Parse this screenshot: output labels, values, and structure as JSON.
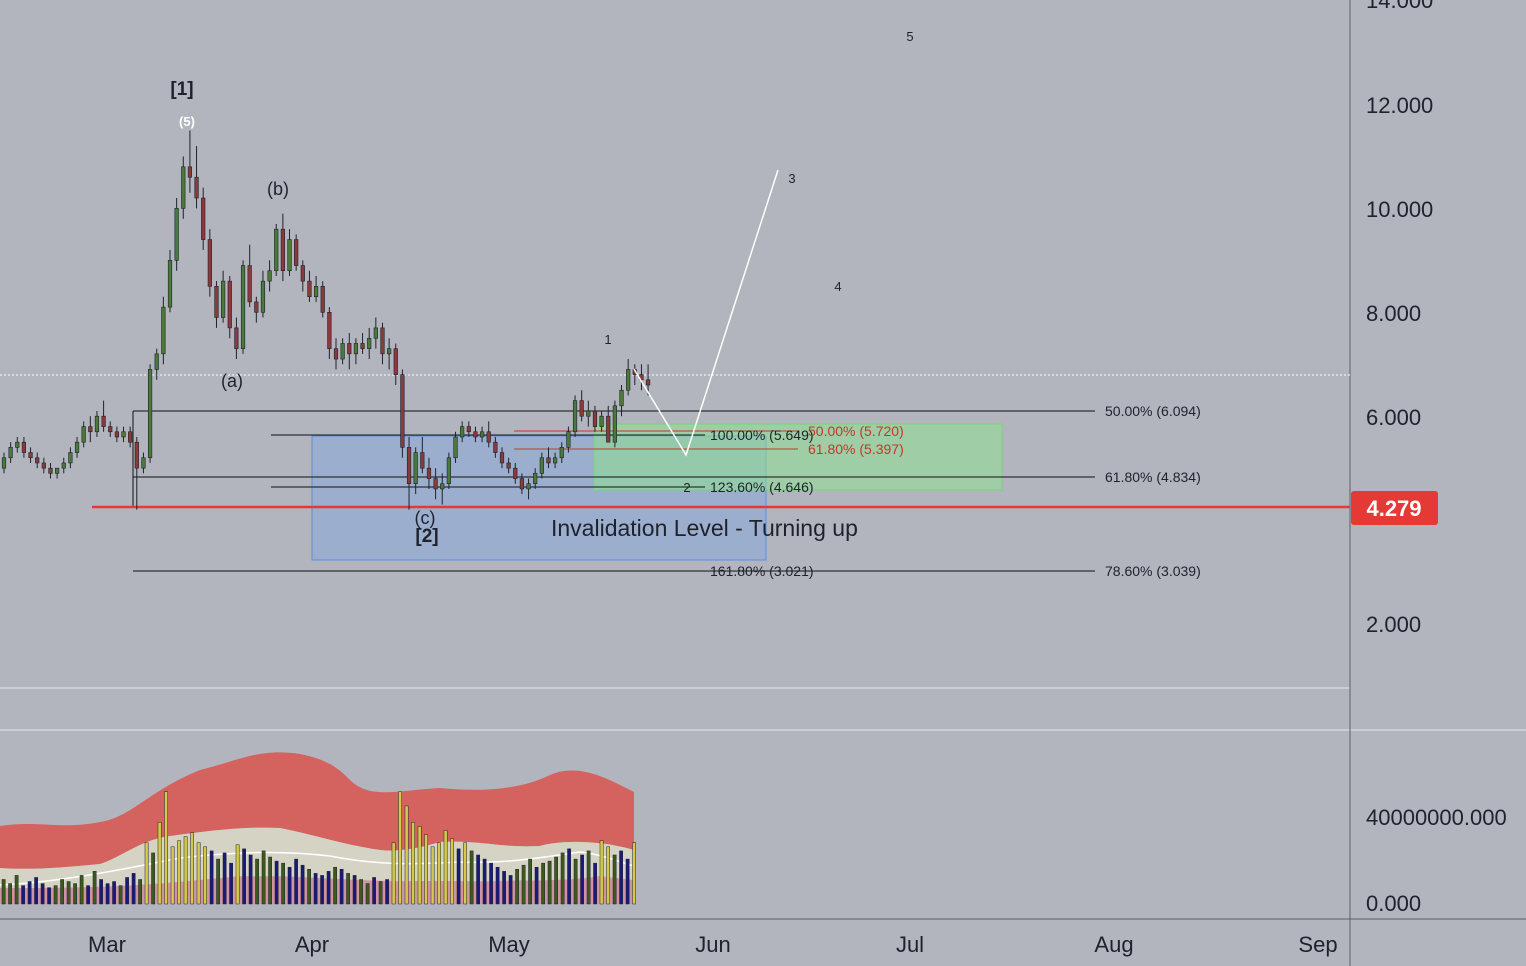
{
  "theme": {
    "background": "#b2b5be",
    "up_candle": "#4a7a3a",
    "down_candle": "#8b3a3a",
    "invalidation": "#e53935",
    "fib_red": "#c0392b",
    "box_blue": "#7ea6e0",
    "box_green": "#8fe08f",
    "volume_band": "#d9534f",
    "volume_mid": "#d8d6c4"
  },
  "price_axis": {
    "ticks": [
      "14.000",
      "12.000",
      "10.000",
      "8.000",
      "6.000",
      "2.000"
    ],
    "current_price": "4.279"
  },
  "volume_axis": {
    "ticks": [
      "40000000.000",
      "0.000"
    ]
  },
  "time_axis": {
    "labels": [
      "Mar",
      "Apr",
      "May",
      "Jun",
      "Jul",
      "Aug",
      "Sep"
    ]
  },
  "wave_labels": {
    "big1": "[1]",
    "w5": "(5)",
    "wa": "(a)",
    "wb": "(b)",
    "wc": "(c)",
    "big2": "[2]",
    "n1": "1",
    "n2": "2",
    "n3": "3",
    "n4": "4",
    "n5": "5"
  },
  "fib_labels": {
    "f50_left": "50.00% (6.094)",
    "f618_left": "61.80% (4.834)",
    "f786_left": "78.60% (3.039)",
    "f100_ext": "100.00% (5.649)",
    "f1236_ext": "123.60% (4.646)",
    "f1618_ext": "161.80% (3.021)",
    "f50_red": "50.00% (5.720)",
    "f618_red": "61.80% (5.397)"
  },
  "annotation": {
    "invalidation_text": "Invalidation Level - Turning up"
  },
  "chart_data": {
    "type": "candlestick",
    "title": "",
    "ylim": [
      0,
      14.5
    ],
    "x_range": [
      "Feb 15",
      "Sep 10"
    ],
    "grid": false,
    "current_price": 4.279,
    "invalidation_level": 4.279,
    "candles_ohlc": [
      [
        5.0,
        5.3,
        4.9,
        5.2
      ],
      [
        5.2,
        5.5,
        5.1,
        5.4
      ],
      [
        5.4,
        5.6,
        5.3,
        5.5
      ],
      [
        5.5,
        5.6,
        5.2,
        5.3
      ],
      [
        5.3,
        5.4,
        5.1,
        5.2
      ],
      [
        5.2,
        5.3,
        5.0,
        5.1
      ],
      [
        5.1,
        5.2,
        4.9,
        5.0
      ],
      [
        5.0,
        5.1,
        4.8,
        4.9
      ],
      [
        4.9,
        5.0,
        4.8,
        5.0
      ],
      [
        5.0,
        5.2,
        4.9,
        5.1
      ],
      [
        5.1,
        5.4,
        5.0,
        5.3
      ],
      [
        5.3,
        5.6,
        5.2,
        5.5
      ],
      [
        5.5,
        5.9,
        5.4,
        5.8
      ],
      [
        5.8,
        6.0,
        5.5,
        5.7
      ],
      [
        5.7,
        6.1,
        5.6,
        6.0
      ],
      [
        6.0,
        6.3,
        5.7,
        5.8
      ],
      [
        5.8,
        5.9,
        5.6,
        5.7
      ],
      [
        5.7,
        5.8,
        5.5,
        5.6
      ],
      [
        5.6,
        5.8,
        5.5,
        5.7
      ],
      [
        5.7,
        5.8,
        5.4,
        5.5
      ],
      [
        5.5,
        5.6,
        4.2,
        5.0
      ],
      [
        5.0,
        5.3,
        4.9,
        5.2
      ],
      [
        5.2,
        7.0,
        5.1,
        6.9
      ],
      [
        6.9,
        7.3,
        6.7,
        7.2
      ],
      [
        7.2,
        8.3,
        7.0,
        8.1
      ],
      [
        8.1,
        9.2,
        8.0,
        9.0
      ],
      [
        9.0,
        10.2,
        8.8,
        10.0
      ],
      [
        10.0,
        11.0,
        9.8,
        10.8
      ],
      [
        10.8,
        11.5,
        10.3,
        10.6
      ],
      [
        10.6,
        11.2,
        10.0,
        10.2
      ],
      [
        10.2,
        10.4,
        9.2,
        9.4
      ],
      [
        9.4,
        9.6,
        8.3,
        8.5
      ],
      [
        8.5,
        8.6,
        7.7,
        7.9
      ],
      [
        7.9,
        8.8,
        7.8,
        8.6
      ],
      [
        8.6,
        8.7,
        7.5,
        7.7
      ],
      [
        7.7,
        7.9,
        7.1,
        7.3
      ],
      [
        7.3,
        9.0,
        7.2,
        8.9
      ],
      [
        8.9,
        9.3,
        8.1,
        8.2
      ],
      [
        8.2,
        8.3,
        7.8,
        8.0
      ],
      [
        8.0,
        8.8,
        7.9,
        8.6
      ],
      [
        8.6,
        9.0,
        8.4,
        8.8
      ],
      [
        8.8,
        9.7,
        8.7,
        9.6
      ],
      [
        9.6,
        9.9,
        8.6,
        8.8
      ],
      [
        8.8,
        9.6,
        8.7,
        9.4
      ],
      [
        9.4,
        9.5,
        8.8,
        8.9
      ],
      [
        8.9,
        9.0,
        8.4,
        8.6
      ],
      [
        8.6,
        8.8,
        8.2,
        8.3
      ],
      [
        8.3,
        8.7,
        8.2,
        8.5
      ],
      [
        8.5,
        8.6,
        7.9,
        8.0
      ],
      [
        8.0,
        8.1,
        7.1,
        7.3
      ],
      [
        7.3,
        7.5,
        6.9,
        7.1
      ],
      [
        7.1,
        7.5,
        7.0,
        7.4
      ],
      [
        7.4,
        7.6,
        6.9,
        7.2
      ],
      [
        7.2,
        7.5,
        7.0,
        7.4
      ],
      [
        7.4,
        7.6,
        7.2,
        7.3
      ],
      [
        7.3,
        7.7,
        7.1,
        7.5
      ],
      [
        7.5,
        7.9,
        7.3,
        7.7
      ],
      [
        7.7,
        7.8,
        7.0,
        7.2
      ],
      [
        7.2,
        7.5,
        6.9,
        7.3
      ],
      [
        7.3,
        7.4,
        6.6,
        6.8
      ],
      [
        6.8,
        6.9,
        5.2,
        5.4
      ],
      [
        5.4,
        5.6,
        4.2,
        4.7
      ],
      [
        4.7,
        5.4,
        4.5,
        5.3
      ],
      [
        5.3,
        5.6,
        4.9,
        5.0
      ],
      [
        5.0,
        5.2,
        4.6,
        4.8
      ],
      [
        4.8,
        5.0,
        4.4,
        4.6
      ],
      [
        4.6,
        4.9,
        4.3,
        4.7
      ],
      [
        4.7,
        5.3,
        4.6,
        5.2
      ],
      [
        5.2,
        5.7,
        5.1,
        5.6
      ],
      [
        5.6,
        5.9,
        5.5,
        5.8
      ],
      [
        5.8,
        5.9,
        5.6,
        5.7
      ],
      [
        5.7,
        5.8,
        5.5,
        5.6
      ],
      [
        5.6,
        5.8,
        5.5,
        5.7
      ],
      [
        5.7,
        5.9,
        5.4,
        5.5
      ],
      [
        5.5,
        5.6,
        5.2,
        5.3
      ],
      [
        5.3,
        5.4,
        5.0,
        5.1
      ],
      [
        5.1,
        5.2,
        4.9,
        5.0
      ],
      [
        5.0,
        5.1,
        4.7,
        4.8
      ],
      [
        4.8,
        4.9,
        4.5,
        4.6
      ],
      [
        4.6,
        4.8,
        4.4,
        4.7
      ],
      [
        4.7,
        5.0,
        4.6,
        4.9
      ],
      [
        4.9,
        5.3,
        4.8,
        5.2
      ],
      [
        5.2,
        5.4,
        5.0,
        5.1
      ],
      [
        5.1,
        5.3,
        5.0,
        5.2
      ],
      [
        5.2,
        5.5,
        5.1,
        5.4
      ],
      [
        5.4,
        5.8,
        5.3,
        5.7
      ],
      [
        5.7,
        6.4,
        5.6,
        6.3
      ],
      [
        6.3,
        6.5,
        5.9,
        6.0
      ],
      [
        6.0,
        6.3,
        5.8,
        6.1
      ],
      [
        6.1,
        6.2,
        5.7,
        5.8
      ],
      [
        5.8,
        6.1,
        5.7,
        6.0
      ],
      [
        6.0,
        6.2,
        5.6,
        5.5
      ],
      [
        5.5,
        6.3,
        5.4,
        6.2
      ],
      [
        6.2,
        6.6,
        6.0,
        6.5
      ],
      [
        6.5,
        7.1,
        6.4,
        6.9
      ],
      [
        6.9,
        7.0,
        6.6,
        6.8
      ],
      [
        6.8,
        7.0,
        6.5,
        6.7
      ],
      [
        6.7,
        7.0,
        6.4,
        6.6
      ]
    ],
    "fib_levels": [
      {
        "label": "50.00% (6.094)",
        "price": 6.094
      },
      {
        "label": "61.80% (4.834)",
        "price": 4.834
      },
      {
        "label": "78.60% (3.039)",
        "price": 3.039
      },
      {
        "label": "100.00% (5.649)",
        "price": 5.649
      },
      {
        "label": "123.60% (4.646)",
        "price": 4.646
      },
      {
        "label": "161.80% (3.021)",
        "price": 3.021
      },
      {
        "label": "50.00% (5.720)",
        "price": 5.72
      },
      {
        "label": "61.80% (5.397)",
        "price": 5.397
      }
    ],
    "projection_path": [
      [
        6.7,
        5.2
      ],
      [
        5.2,
        10.8
      ]
    ],
    "volume": [
      12,
      10,
      14,
      9,
      11,
      13,
      10,
      8,
      9,
      12,
      11,
      10,
      14,
      9,
      16,
      12,
      10,
      11,
      9,
      13,
      15,
      12,
      30,
      25,
      40,
      55,
      28,
      31,
      33,
      35,
      30,
      28,
      26,
      22,
      25,
      20,
      29,
      27,
      24,
      22,
      26,
      23,
      21,
      20,
      18,
      22,
      19,
      17,
      15,
      14,
      16,
      18,
      17,
      15,
      14,
      12,
      10,
      13,
      11,
      12,
      30,
      55,
      48,
      40,
      38,
      34,
      28,
      30,
      36,
      32,
      27,
      30,
      26,
      24,
      22,
      20,
      18,
      16,
      14,
      17,
      19,
      22,
      18,
      20,
      21,
      23,
      25,
      27,
      22,
      24,
      26,
      20,
      31,
      28,
      24,
      26,
      22,
      30
    ],
    "volume_ylim": [
      0,
      80000000
    ]
  }
}
